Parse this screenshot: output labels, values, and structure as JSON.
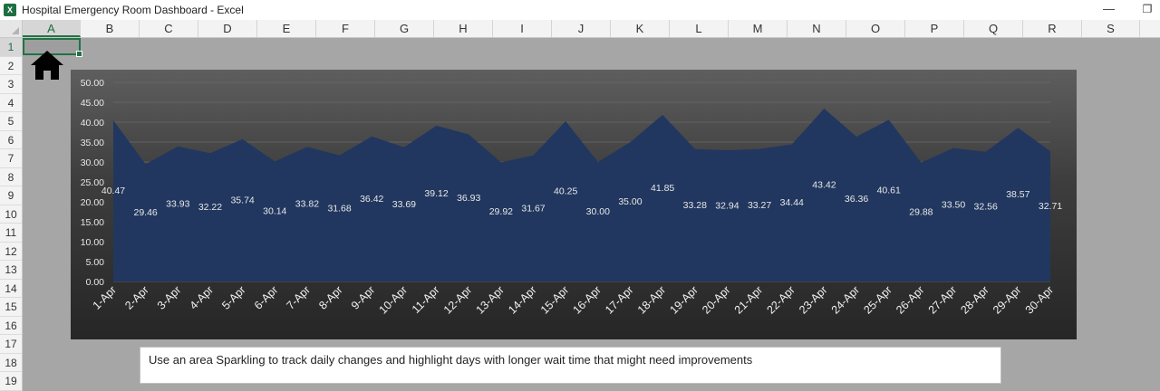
{
  "window": {
    "title": "Hospital Emergency Room Dashboard - Excel",
    "app_icon": "excel-icon",
    "min_glyph": "—",
    "restore_glyph": "❐"
  },
  "sheet": {
    "columns": [
      "A",
      "B",
      "C",
      "D",
      "E",
      "F",
      "G",
      "H",
      "I",
      "J",
      "K",
      "L",
      "M",
      "N",
      "O",
      "P",
      "Q",
      "R",
      "S"
    ],
    "rows": [
      "1",
      "2",
      "3",
      "4",
      "5",
      "6",
      "7",
      "8",
      "9",
      "10",
      "11",
      "12",
      "13",
      "14",
      "15",
      "16",
      "17",
      "18",
      "19"
    ],
    "selected_cell": "A1",
    "home_icon": "home-icon"
  },
  "colors": {
    "area_fill": "#21375f",
    "label_text": "#e8e8e8",
    "selection": "#217346"
  },
  "chart_data": {
    "type": "area",
    "categories": [
      "1-Apr",
      "2-Apr",
      "3-Apr",
      "4-Apr",
      "5-Apr",
      "6-Apr",
      "7-Apr",
      "8-Apr",
      "9-Apr",
      "10-Apr",
      "11-Apr",
      "12-Apr",
      "13-Apr",
      "14-Apr",
      "15-Apr",
      "16-Apr",
      "17-Apr",
      "18-Apr",
      "19-Apr",
      "20-Apr",
      "21-Apr",
      "22-Apr",
      "23-Apr",
      "24-Apr",
      "25-Apr",
      "26-Apr",
      "27-Apr",
      "28-Apr",
      "29-Apr",
      "30-Apr"
    ],
    "values": [
      40.47,
      29.46,
      33.93,
      32.22,
      35.74,
      30.14,
      33.82,
      31.68,
      36.42,
      33.69,
      39.12,
      36.93,
      29.92,
      31.67,
      40.25,
      30.0,
      35.0,
      41.85,
      33.28,
      32.94,
      33.27,
      34.44,
      43.42,
      36.36,
      40.61,
      29.88,
      33.5,
      32.56,
      38.57,
      32.71
    ],
    "data_labels": [
      "40.47",
      "29.46",
      "33.93",
      "32.22",
      "35.74",
      "30.14",
      "33.82",
      "31.68",
      "36.42",
      "33.69",
      "39.12",
      "36.93",
      "29.92",
      "31.67",
      "40.25",
      "30.00",
      "35.00",
      "41.85",
      "33.28",
      "32.94",
      "33.27",
      "34.44",
      "43.42",
      "36.36",
      "40.61",
      "29.88",
      "33.50",
      "32.56",
      "38.57",
      "32.71"
    ],
    "yticks": [
      "0.00",
      "5.00",
      "10.00",
      "15.00",
      "20.00",
      "25.00",
      "30.00",
      "35.00",
      "40.00",
      "45.00",
      "50.00"
    ],
    "ylim": [
      0,
      50
    ],
    "grid": true,
    "legend": "none"
  },
  "note": {
    "text": "Use an area Sparkling to track daily changes and highlight days with longer wait time that might need improvements"
  }
}
